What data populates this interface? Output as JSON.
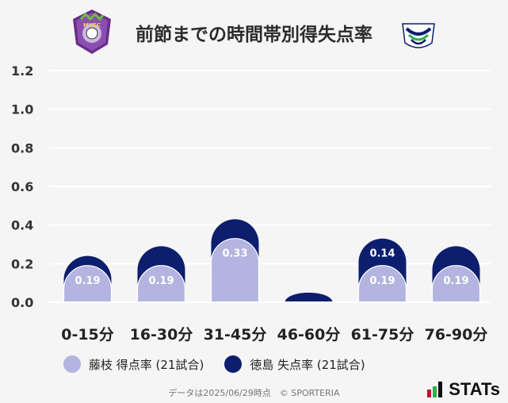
{
  "header": {
    "title": "前節までの時間帯別得失点率",
    "home_logo_text": "FUJIEDA MYFC",
    "away_logo_text": "TOKUSHIMA VORTIS"
  },
  "colors": {
    "home": "#b4b4e0",
    "away": "#0d1e6e",
    "grid": "#ffffff",
    "background": "#f5f5f5"
  },
  "chart_data": {
    "type": "bar",
    "categories": [
      "0-15分",
      "16-30分",
      "31-45分",
      "46-60分",
      "61-75分",
      "76-90分"
    ],
    "series": [
      {
        "name": "藤枝 得点率 (21試合)",
        "values": [
          0.19,
          0.19,
          0.33,
          0.0,
          0.19,
          0.19
        ],
        "labels": [
          "0.19",
          "0.19",
          "0.33",
          "",
          "0.19",
          "0.19"
        ]
      },
      {
        "name": "徳島 失点率 (21試合)",
        "values": [
          0.05,
          0.1,
          0.1,
          0.05,
          0.14,
          0.1
        ],
        "labels": [
          "",
          "",
          "",
          "",
          "0.14",
          ""
        ]
      }
    ],
    "stacked": true,
    "ylim": [
      0,
      1.2
    ],
    "yticks": [
      "0.0",
      "0.2",
      "0.4",
      "0.6",
      "0.8",
      "1.0",
      "1.2"
    ],
    "grid": true,
    "legend_position": "bottom"
  },
  "footer": {
    "note": "データは2025/06/29時点　© SPORTERIA",
    "brand": "STATs"
  }
}
